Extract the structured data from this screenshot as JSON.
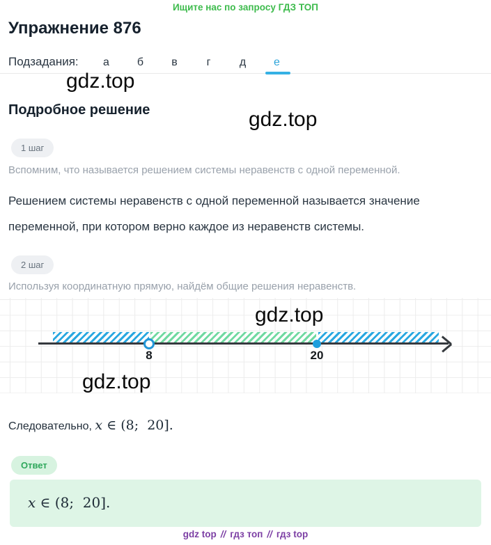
{
  "header": {
    "top_note": "Ищите нас по запросу ГДЗ ТОП",
    "title": "Упражнение 876"
  },
  "tabs": {
    "label": "Подзадания:",
    "items": [
      {
        "label": "а"
      },
      {
        "label": "б"
      },
      {
        "label": "в"
      },
      {
        "label": "г"
      },
      {
        "label": "д"
      },
      {
        "label": "е"
      }
    ],
    "active_tab": "е"
  },
  "watermark": {
    "text": "gdz.top"
  },
  "solution": {
    "heading": "Подробное решение",
    "step1_badge": "1 шаг",
    "step1_note": "Вспомним, что называется решением системы неравенств с одной переменной.",
    "step1_text_line1": "Решением системы неравенств с одной переменной называется значение",
    "step1_text_line2": "переменной, при котором верно каждое из неравенств системы.",
    "step2_badge": "2 шаг",
    "step2_note": "Используя координатную прямую, найдём общие решения неравенств."
  },
  "number_line": {
    "open_point_label": "8",
    "closed_point_label": "20",
    "interval": "(8; 20]",
    "hatch_colors": {
      "outer": "#29a7e0",
      "solution": "#70d9a1"
    }
  },
  "conclusion": {
    "prefix": "Следовательно,",
    "math_var": "x",
    "math_rest": " ∈ (8;  20]."
  },
  "answer": {
    "badge": "Ответ",
    "math_var": "x",
    "math_rest": " ∈ (8;  20]."
  },
  "footer": {
    "links": [
      {
        "label": "gdz top"
      },
      {
        "label": "гдз топ"
      },
      {
        "label": "гдз top"
      }
    ],
    "separator": "//"
  },
  "colors": {
    "accent_blue": "#2da4da",
    "tab_underline": "#35b1e4",
    "green_note": "#3dbb4c",
    "answer_bg": "#def5e6",
    "answer_badge_text": "#2fa85c",
    "footer_purple": "#7c3fa4",
    "step_badge_bg": "#eef0f3",
    "gray_text": "#99a1ab",
    "dark_text": "#2a3642"
  }
}
